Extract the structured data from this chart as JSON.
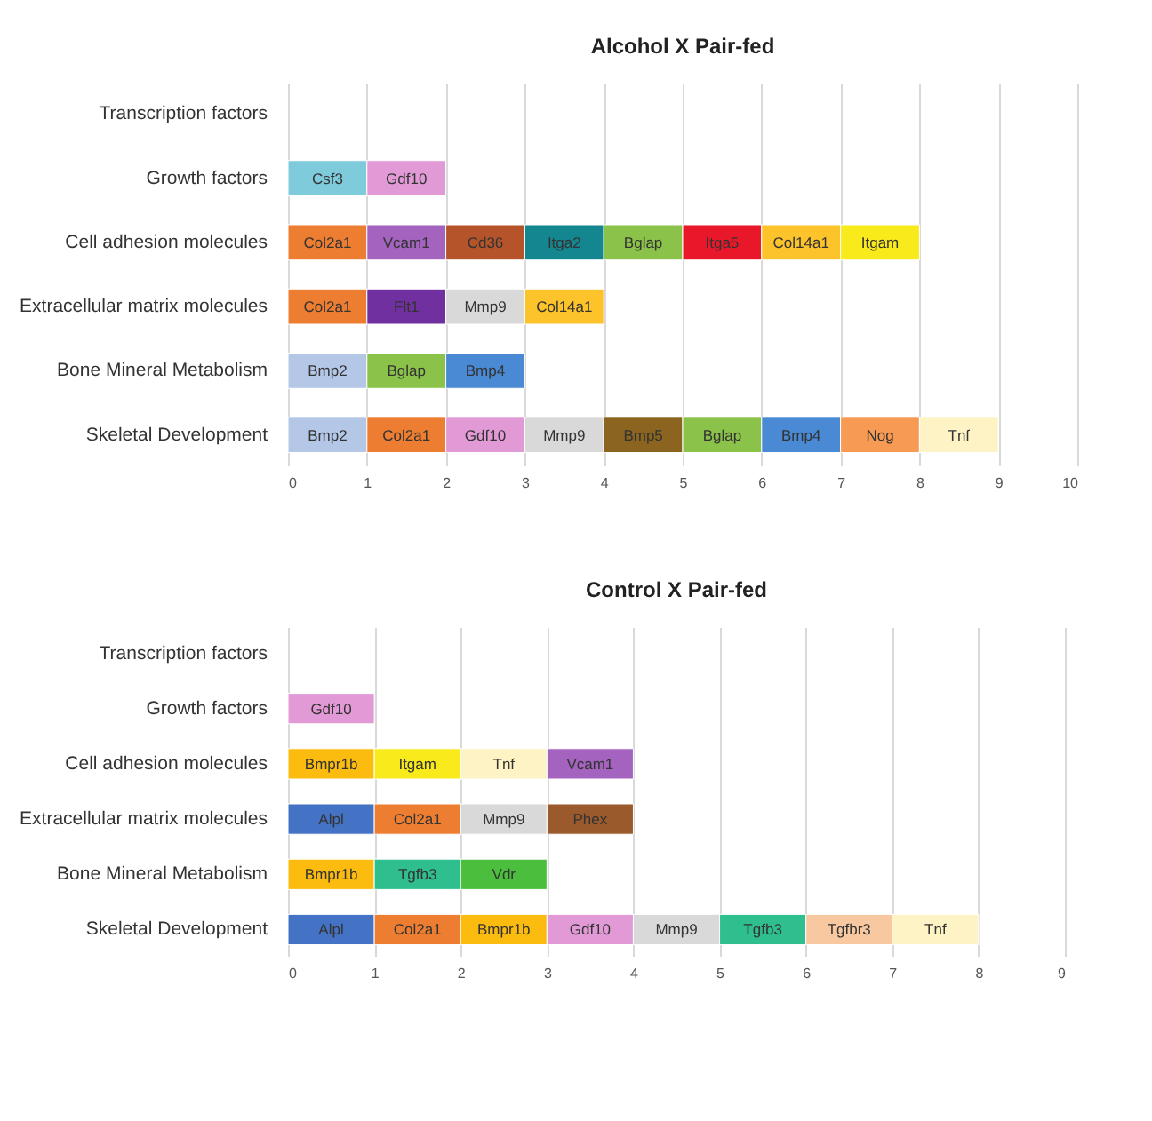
{
  "chart_data": [
    {
      "type": "bar",
      "title": "Alcohol X Pair-fed",
      "orientation": "horizontal",
      "stacked": true,
      "grid": "x",
      "categories": [
        "Transcription factors",
        "Growth factors",
        "Cell adhesion molecules",
        "Extracellular matrix molecules",
        "Bone Mineral Metabolism",
        "Skeletal Development"
      ],
      "xlim": [
        0,
        10
      ],
      "xticks": [
        0,
        1,
        2,
        3,
        4,
        5,
        6,
        7,
        8,
        9,
        10
      ],
      "series": [
        {
          "values": [
            null,
            1,
            1,
            1,
            1,
            1
          ],
          "colors": [
            null,
            "#7ecbdc",
            "#ed7d31",
            "#ed7d31",
            "#b4c7e7",
            "#b4c7e7"
          ],
          "value_labels": [
            null,
            "Csf3",
            "Col2a1",
            "Col2a1",
            "Bmp2",
            "Bmp2"
          ]
        },
        {
          "values": [
            null,
            1,
            1,
            1,
            1,
            1
          ],
          "colors": [
            null,
            "#e19ad6",
            "#a463bf",
            "#7030a0",
            "#8bc34a",
            "#ed7d31"
          ],
          "value_labels": [
            null,
            "Gdf10",
            "Vcam1",
            "Flt1",
            "Bglap",
            "Col2a1"
          ]
        },
        {
          "values": [
            null,
            null,
            1,
            1,
            1,
            1
          ],
          "colors": [
            null,
            null,
            "#b5532a",
            "#d9d9d9",
            "#4a89d4",
            "#e19ad6"
          ],
          "value_labels": [
            null,
            null,
            "Cd36",
            "Mmp9",
            "Bmp4",
            "Gdf10"
          ]
        },
        {
          "values": [
            null,
            null,
            1,
            1,
            null,
            1
          ],
          "colors": [
            null,
            null,
            "#13868f",
            "#fcc32a",
            null,
            "#d9d9d9"
          ],
          "value_labels": [
            null,
            null,
            "Itga2",
            "Col14a1",
            null,
            "Mmp9"
          ]
        },
        {
          "values": [
            null,
            null,
            1,
            null,
            null,
            1
          ],
          "colors": [
            null,
            null,
            "#8bc34a",
            null,
            null,
            "#8b6420"
          ],
          "value_labels": [
            null,
            null,
            "Bglap",
            null,
            null,
            "Bmp5"
          ]
        },
        {
          "values": [
            null,
            null,
            1,
            null,
            null,
            1
          ],
          "colors": [
            null,
            null,
            "#e8182a",
            null,
            null,
            "#8bc34a"
          ],
          "value_labels": [
            null,
            null,
            "Itga5",
            null,
            null,
            "Bglap"
          ]
        },
        {
          "values": [
            null,
            null,
            1,
            null,
            null,
            1
          ],
          "colors": [
            null,
            null,
            "#fcc32a",
            null,
            null,
            "#4a89d4"
          ],
          "value_labels": [
            null,
            null,
            "Col14a1",
            null,
            null,
            "Bmp4"
          ]
        },
        {
          "values": [
            null,
            null,
            1,
            null,
            null,
            1
          ],
          "colors": [
            null,
            null,
            "#f9ea1c",
            null,
            null,
            "#f79a54"
          ],
          "value_labels": [
            null,
            null,
            "Itgam",
            null,
            null,
            "Nog"
          ]
        },
        {
          "values": [
            null,
            null,
            null,
            null,
            null,
            1
          ],
          "colors": [
            null,
            null,
            null,
            null,
            null,
            "#fdf3c4"
          ],
          "value_labels": [
            null,
            null,
            null,
            null,
            null,
            "Tnf"
          ]
        }
      ]
    },
    {
      "type": "bar",
      "title": "Control X Pair-fed",
      "orientation": "horizontal",
      "stacked": true,
      "grid": "x",
      "categories": [
        "Transcription factors",
        "Growth factors",
        "Cell adhesion molecules",
        "Extracellular matrix molecules",
        "Bone Mineral Metabolism",
        "Skeletal Development"
      ],
      "xlim": [
        0,
        9
      ],
      "xticks": [
        0,
        1,
        2,
        3,
        4,
        5,
        6,
        7,
        8,
        9
      ],
      "series": [
        {
          "values": [
            null,
            1,
            1,
            1,
            1,
            1
          ],
          "colors": [
            null,
            "#e19ad6",
            "#fbbb0f",
            "#4472c4",
            "#fbbb0f",
            "#4472c4"
          ],
          "value_labels": [
            null,
            "Gdf10",
            "Bmpr1b",
            "Alpl",
            "Bmpr1b",
            "Alpl"
          ]
        },
        {
          "values": [
            null,
            null,
            1,
            1,
            1,
            1
          ],
          "colors": [
            null,
            null,
            "#f9ea1c",
            "#ed7d31",
            "#2fbf8f",
            "#ed7d31"
          ],
          "value_labels": [
            null,
            null,
            "Itgam",
            "Col2a1",
            "Tgfb3",
            "Col2a1"
          ]
        },
        {
          "values": [
            null,
            null,
            1,
            1,
            1,
            1
          ],
          "colors": [
            null,
            null,
            "#fdf3c4",
            "#d9d9d9",
            "#4bbf3d",
            "#fbbb0f"
          ],
          "value_labels": [
            null,
            null,
            "Tnf",
            "Mmp9",
            "Vdr",
            "Bmpr1b"
          ]
        },
        {
          "values": [
            null,
            null,
            1,
            1,
            null,
            1
          ],
          "colors": [
            null,
            null,
            "#a463bf",
            "#9b5a2c",
            null,
            "#e19ad6"
          ],
          "value_labels": [
            null,
            null,
            "Vcam1",
            "Phex",
            null,
            "Gdf10"
          ]
        },
        {
          "values": [
            null,
            null,
            null,
            null,
            null,
            1
          ],
          "colors": [
            null,
            null,
            null,
            null,
            null,
            "#d9d9d9"
          ],
          "value_labels": [
            null,
            null,
            null,
            null,
            null,
            "Mmp9"
          ]
        },
        {
          "values": [
            null,
            null,
            null,
            null,
            null,
            1
          ],
          "colors": [
            null,
            null,
            null,
            null,
            null,
            "#2fbf8f"
          ],
          "value_labels": [
            null,
            null,
            null,
            null,
            null,
            "Tgfb3"
          ]
        },
        {
          "values": [
            null,
            null,
            null,
            null,
            null,
            1
          ],
          "colors": [
            null,
            null,
            null,
            null,
            null,
            "#f8c9a0"
          ],
          "value_labels": [
            null,
            null,
            null,
            null,
            null,
            "Tgfbr3"
          ]
        },
        {
          "values": [
            null,
            null,
            null,
            null,
            null,
            1
          ],
          "colors": [
            null,
            null,
            null,
            null,
            null,
            "#fdf3c4"
          ],
          "value_labels": [
            null,
            null,
            null,
            null,
            null,
            "Tnf"
          ]
        }
      ]
    }
  ]
}
